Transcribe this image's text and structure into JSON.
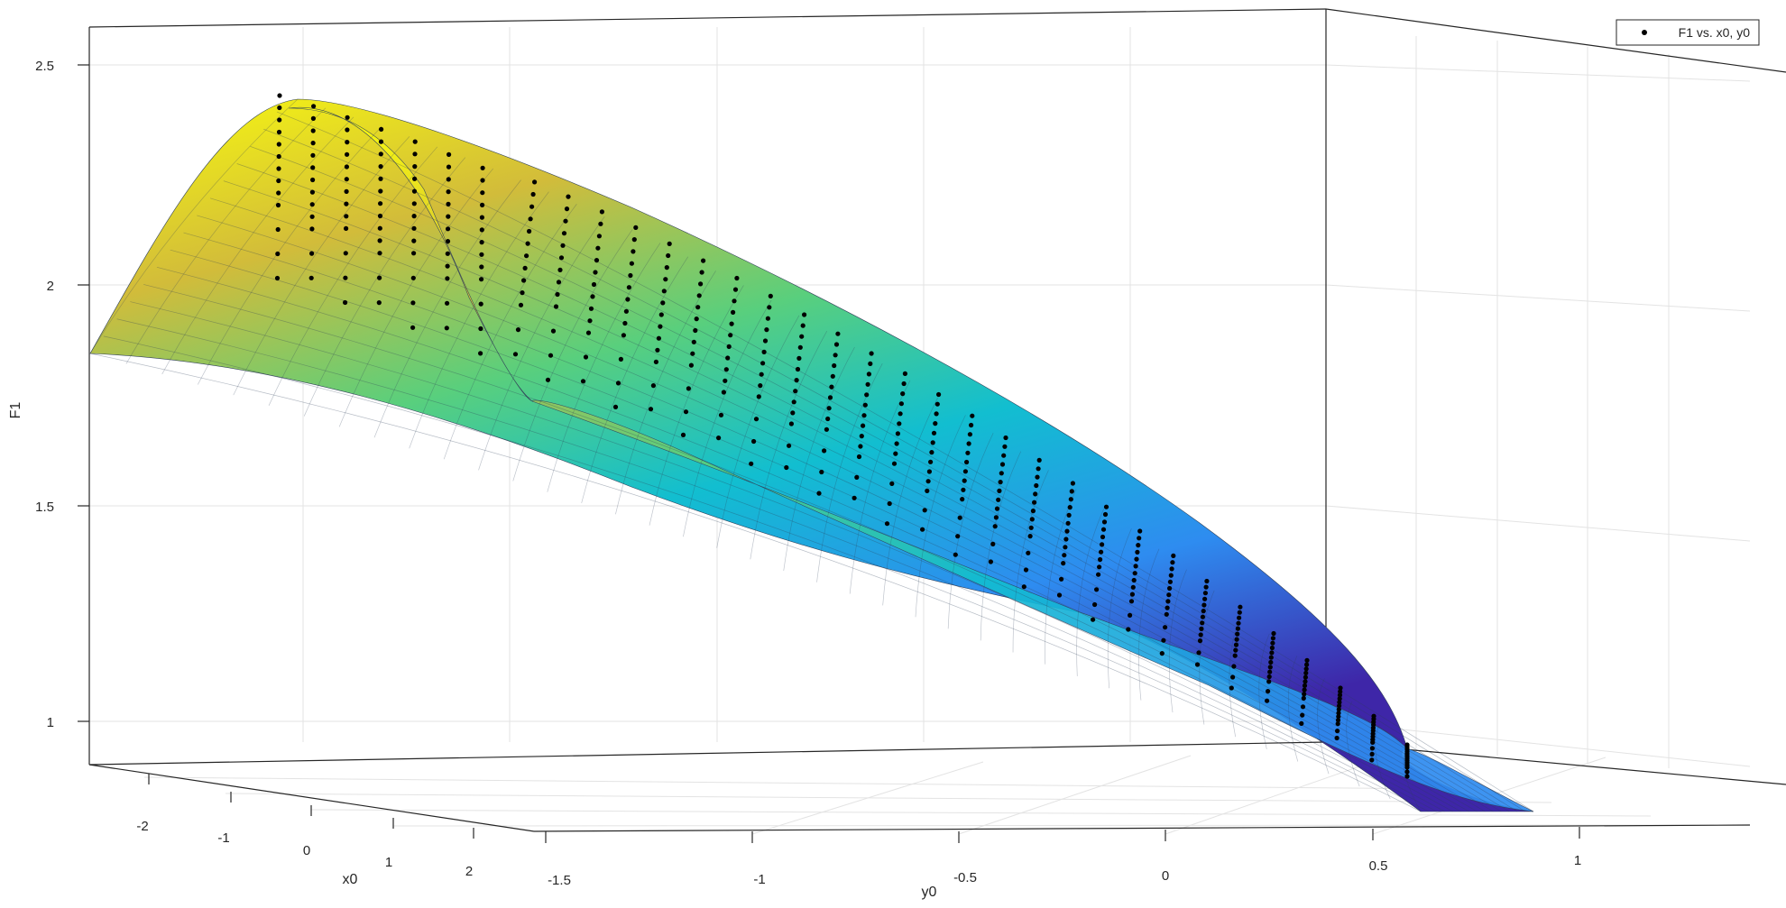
{
  "chart_data": {
    "type": "surface-scatter-3d",
    "title": "",
    "xlabel": "x0",
    "ylabel": "y0",
    "zlabel": "F1",
    "x_ticks": [
      "-2",
      "-1",
      "0",
      "1",
      "2"
    ],
    "y_ticks": [
      "-1.5",
      "-1",
      "-0.5",
      "0",
      "0.5",
      "1"
    ],
    "z_ticks": [
      "1",
      "1.5",
      "2",
      "2.5"
    ],
    "xlim": [
      -2.5,
      2.5
    ],
    "ylim": [
      -1.6,
      1.4
    ],
    "zlim": [
      0.9,
      2.55
    ],
    "grid": true,
    "legend": {
      "position": "top-right",
      "entries": [
        "F1 vs. x0, y0"
      ]
    },
    "series": [
      {
        "name": "F1 vs. x0, y0",
        "kind": "scatter",
        "marker": "dot",
        "color": "#000000"
      }
    ],
    "surface": {
      "colormap": "parula",
      "colors": [
        "#3e26a8",
        "#2e8cf0",
        "#12bed0",
        "#59cf7d",
        "#d2bc3a",
        "#f9fb0e"
      ]
    }
  }
}
